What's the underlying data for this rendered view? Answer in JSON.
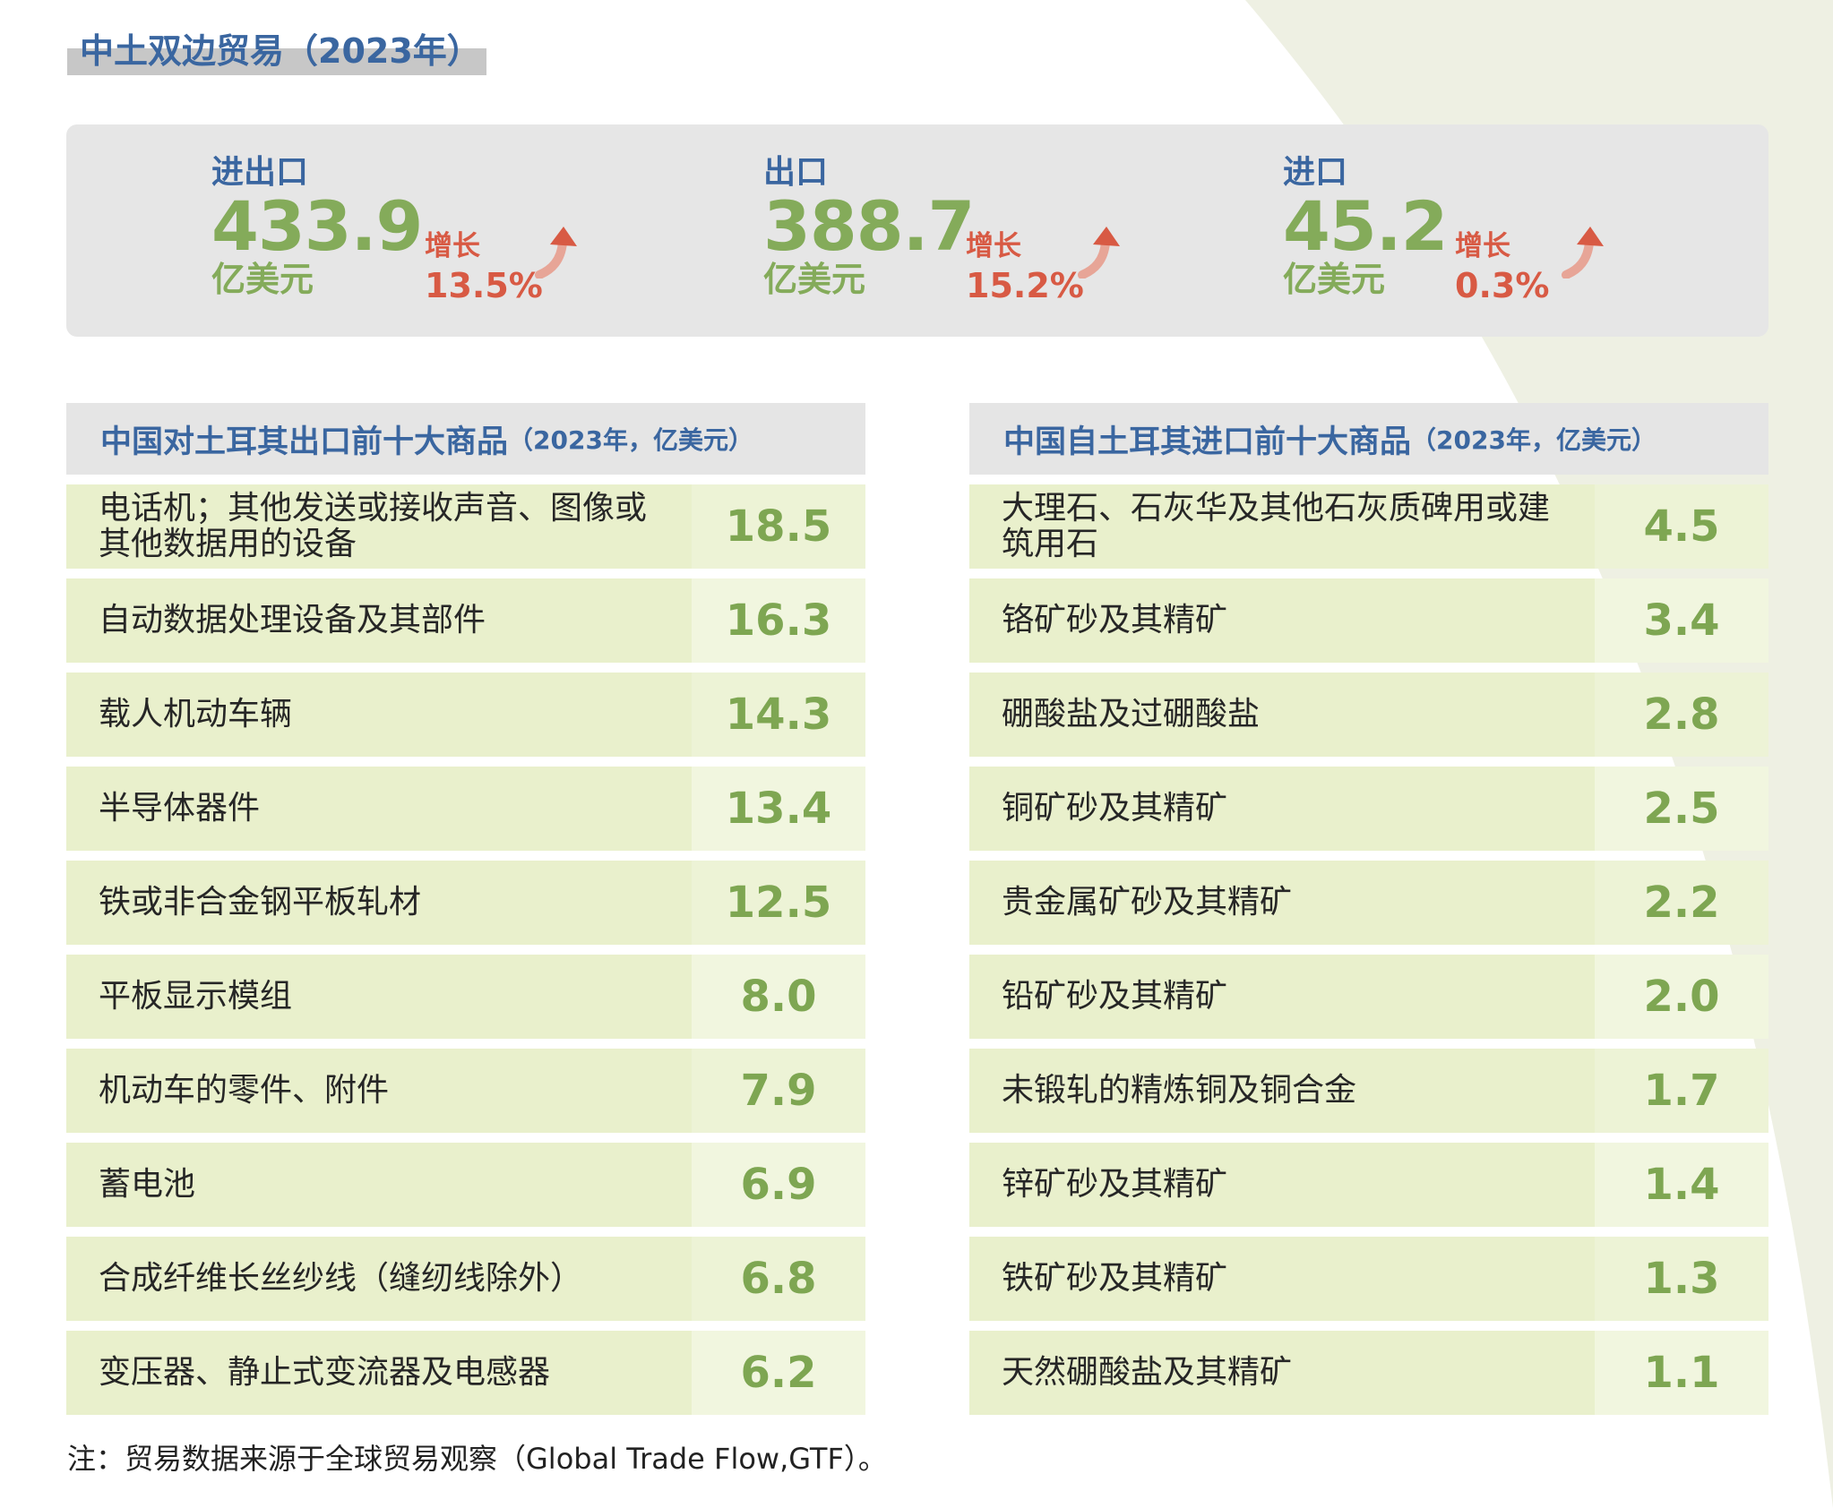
{
  "title": "中土双边贸易（2023年）",
  "summary": [
    {
      "label": "进出口",
      "value": "433.9",
      "unit": "亿美元",
      "growth_label": "增长",
      "growth_value": "13.5%"
    },
    {
      "label": "出口",
      "value": "388.7",
      "unit": "亿美元",
      "growth_label": "增长",
      "growth_value": "15.2%"
    },
    {
      "label": "进口",
      "value": "45.2",
      "unit": "亿美元",
      "growth_label": "增长",
      "growth_value": "0.3%"
    }
  ],
  "export_table": {
    "title": "中国对土耳其出口前十大商品",
    "subtitle": "（2023年，亿美元）",
    "rows": [
      {
        "name": "电话机；其他发送或接收声音、图像或其他数据用的设备",
        "value": "18.5"
      },
      {
        "name": "自动数据处理设备及其部件",
        "value": "16.3"
      },
      {
        "name": "载人机动车辆",
        "value": "14.3"
      },
      {
        "name": "半导体器件",
        "value": "13.4"
      },
      {
        "name": "铁或非合金钢平板轧材",
        "value": "12.5"
      },
      {
        "name": "平板显示模组",
        "value": "8.0"
      },
      {
        "name": "机动车的零件、附件",
        "value": "7.9"
      },
      {
        "name": "蓄电池",
        "value": "6.9"
      },
      {
        "name": "合成纤维长丝纱线（缝纫线除外）",
        "value": "6.8"
      },
      {
        "name": "变压器、静止式变流器及电感器",
        "value": "6.2"
      }
    ]
  },
  "import_table": {
    "title": "中国自土耳其进口前十大商品",
    "subtitle": "（2023年，亿美元）",
    "rows": [
      {
        "name": "大理石、石灰华及其他石灰质碑用或建筑用石",
        "value": "4.5"
      },
      {
        "name": "铬矿砂及其精矿",
        "value": "3.4"
      },
      {
        "name": "硼酸盐及过硼酸盐",
        "value": "2.8"
      },
      {
        "name": "铜矿砂及其精矿",
        "value": "2.5"
      },
      {
        "name": "贵金属矿砂及其精矿",
        "value": "2.2"
      },
      {
        "name": "铅矿砂及其精矿",
        "value": "2.0"
      },
      {
        "name": "未锻轧的精炼铜及铜合金",
        "value": "1.7"
      },
      {
        "name": "锌矿砂及其精矿",
        "value": "1.4"
      },
      {
        "name": "铁矿砂及其精矿",
        "value": "1.3"
      },
      {
        "name": "天然硼酸盐及其精矿",
        "value": "1.1"
      }
    ]
  },
  "note": "注：贸易数据来源于全球贸易观察（Global Trade Flow,GTF）。",
  "colors": {
    "title_blue": "#3a66a0",
    "value_green": "#84ab5a",
    "growth_red": "#d85a44",
    "row_bg": "#e9f0cc",
    "panel_gray": "#e6e6e6",
    "leaf_bg": "#eef0e3"
  }
}
